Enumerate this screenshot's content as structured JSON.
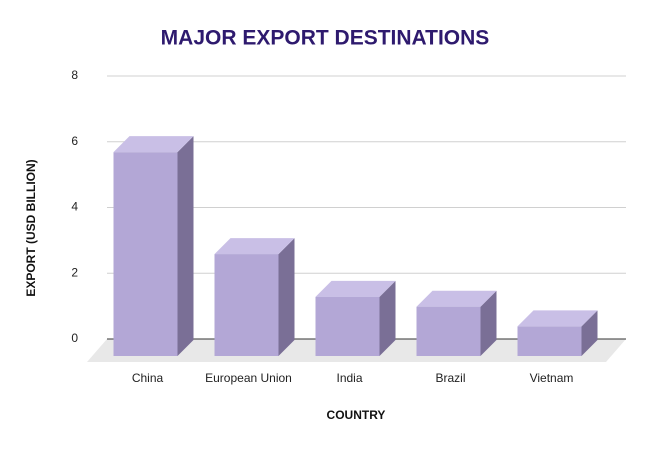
{
  "chart_data": {
    "type": "bar3d",
    "title": "MAJOR EXPORT DESTINATIONS",
    "x_label": "COUNTRY",
    "y_label": "EXPORT (USD BILLION)",
    "categories": [
      "China",
      "European Union",
      "India",
      "Brazil",
      "Vietnam"
    ],
    "values": [
      6.2,
      3.1,
      1.8,
      1.5,
      0.9
    ],
    "color": "#b3a7d6",
    "ylim": [
      0,
      8
    ],
    "yticks": [
      0,
      2,
      4,
      6,
      8
    ],
    "grid": true
  }
}
